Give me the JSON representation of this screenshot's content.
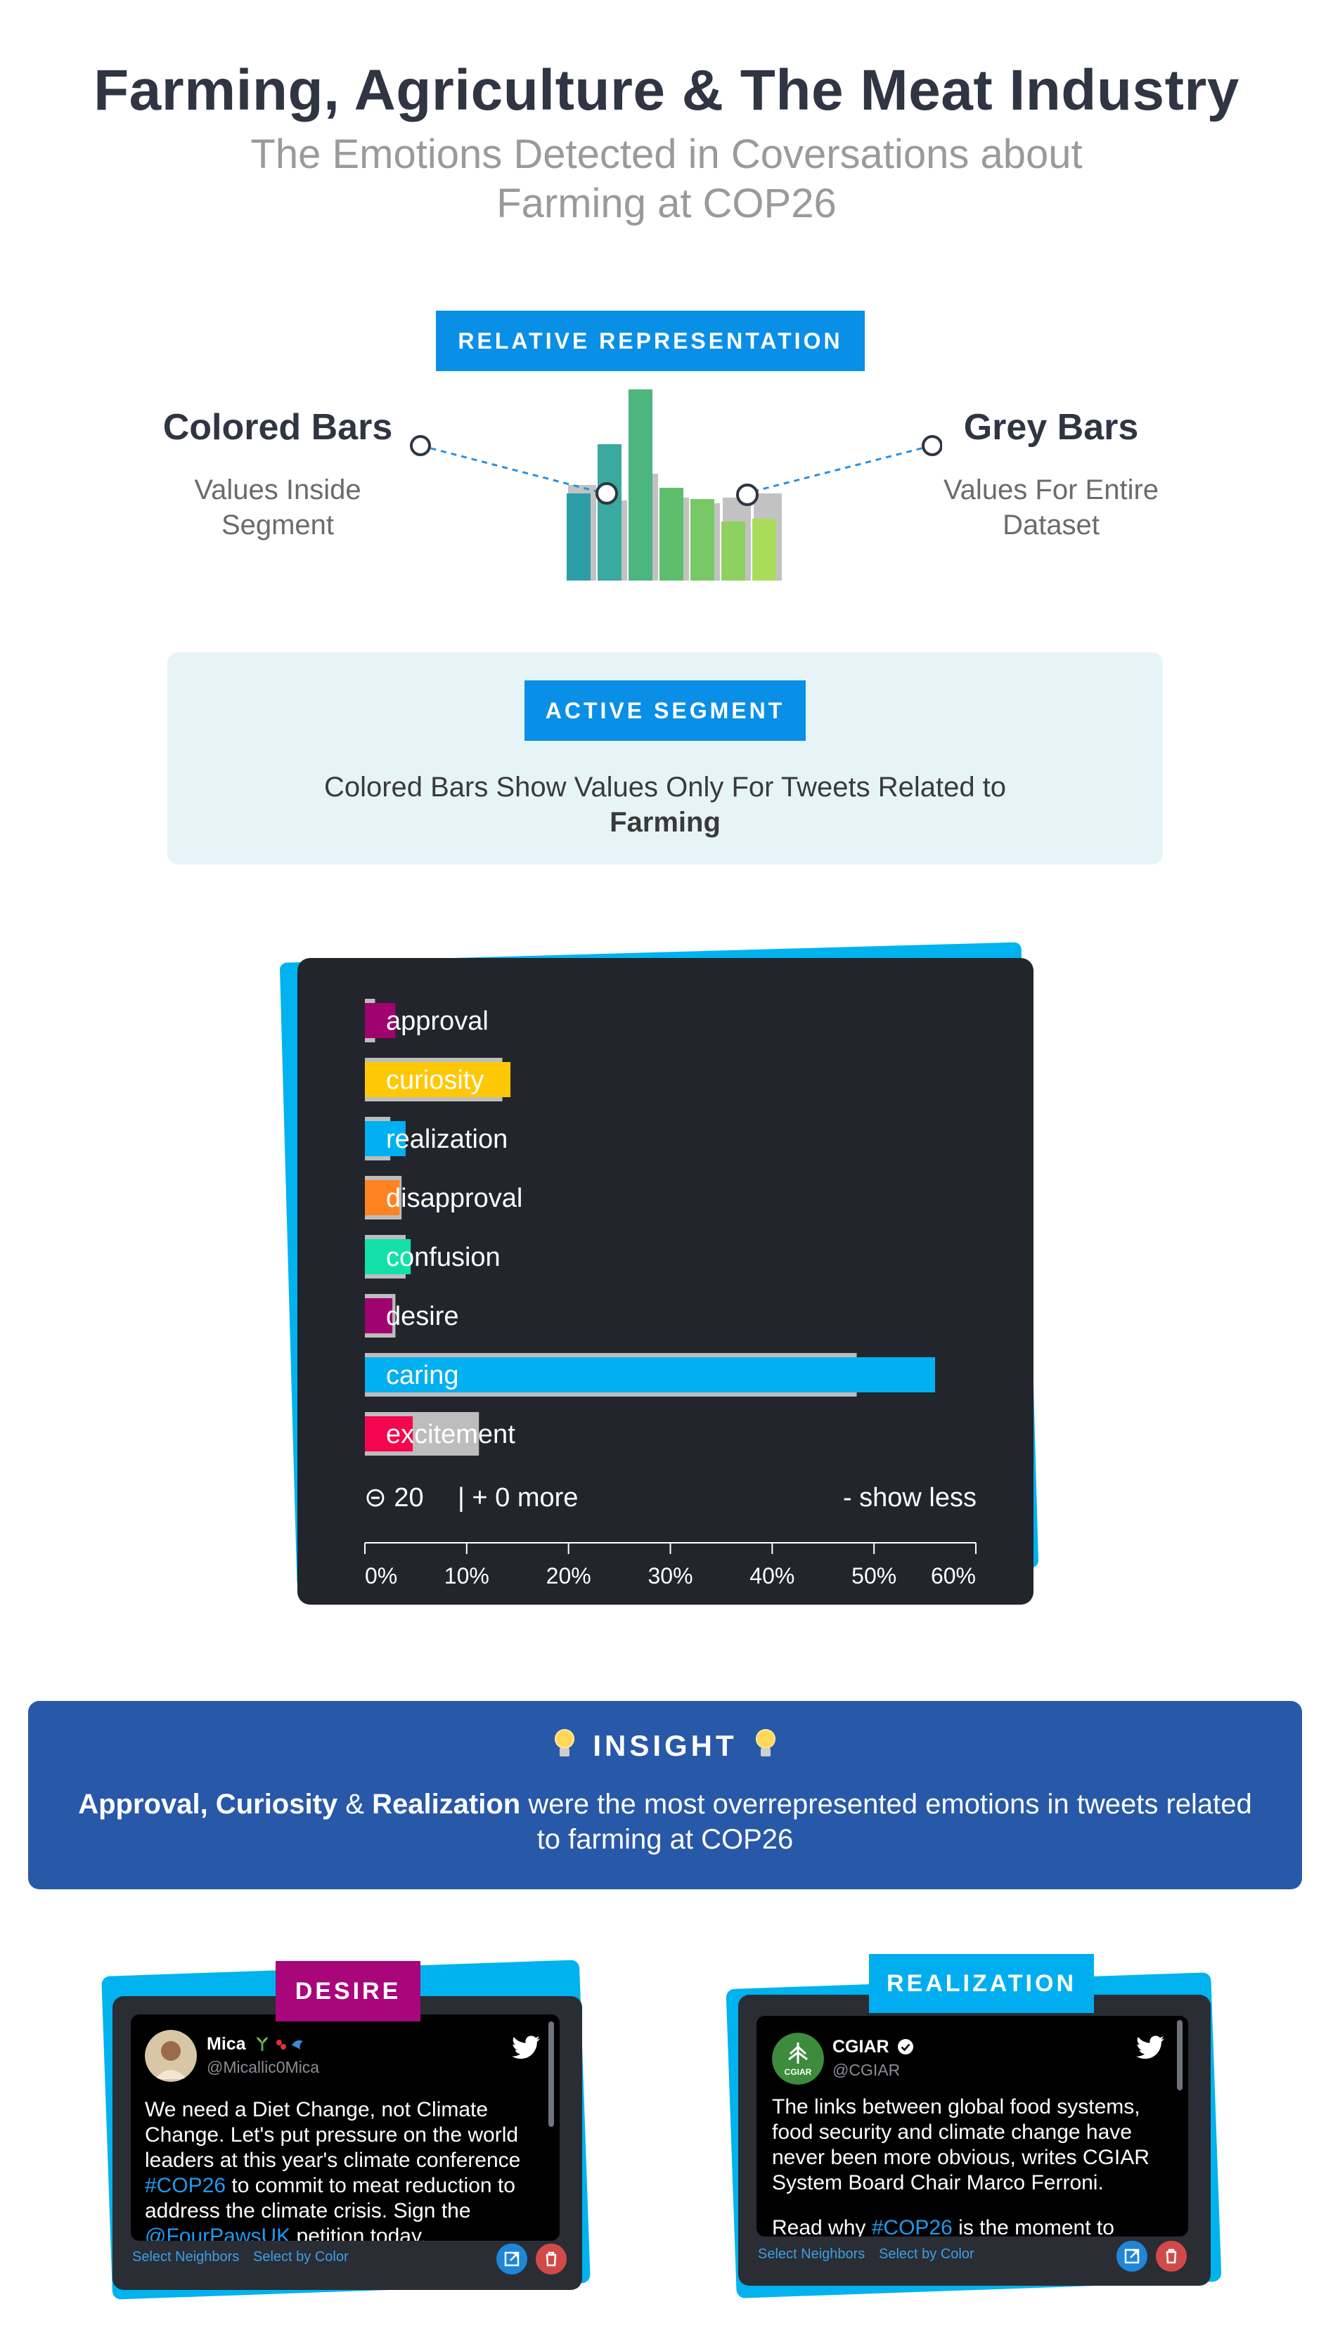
{
  "header": {
    "title": "Farming, Agriculture & The Meat Industry",
    "subtitle_line1": "The Emotions Detected in Coversations about",
    "subtitle_line2": "Farming at COP26"
  },
  "legend": {
    "badge": "RELATIVE REPRESENTATION",
    "left_title": "Colored Bars",
    "left_line1": "Values Inside",
    "left_line2": "Segment",
    "right_title": "Grey Bars",
    "right_line1": "Values For Entire",
    "right_line2": "Dataset"
  },
  "segment": {
    "badge": "ACTIVE SEGMENT",
    "text": "Colored Bars Show Values Only For Tweets Related to",
    "bold": "Farming"
  },
  "chart_data": {
    "type": "bar",
    "orientation": "horizontal",
    "categories": [
      "approval",
      "curiosity",
      "realization",
      "disapproval",
      "confusion",
      "desire",
      "caring",
      "excitement"
    ],
    "series": [
      {
        "values": [
          3.0,
          14.3,
          4.0,
          3.4,
          4.5,
          2.7,
          56.0,
          4.7
        ]
      },
      {
        "values": [
          1.0,
          13.5,
          2.5,
          3.6,
          4.0,
          3.0,
          48.3,
          11.2
        ]
      }
    ],
    "colors": [
      "#a0036f",
      "#ffc807",
      "#00b0f0",
      "#ff8322",
      "#13e0a8",
      "#a0036f",
      "#00b0f0",
      "#f4074f"
    ],
    "xlim": [
      0,
      60
    ],
    "xticks": [
      "0%",
      "10%",
      "20%",
      "30%",
      "40%",
      "50%",
      "60%"
    ],
    "footer_count": "⊝ 20",
    "footer_more": "| + 0 more",
    "footer_less": "- show less"
  },
  "insight": {
    "title": "INSIGHT",
    "bold1": "Approval, Curiosity",
    "amp": " & ",
    "bold2": "Realization",
    "rest": " were the most overrepresented emotions in tweets related to farming at COP26"
  },
  "tweets": [
    {
      "tag": "DESIRE",
      "tag_color": "#a8067a",
      "name": "Mica",
      "handle": "@Micallic0Mica",
      "body_pre": "We need a Diet Change, not Climate Change. Let's put pressure on the world leaders at this year's climate conference ",
      "hashtag": "#COP26",
      "body_post": " to commit to meat reduction to address the climate crisis. Sign the ",
      "mention": "@FourPawsUK",
      "body_end": " petition today.",
      "select_neighbors": "Select Neighbors",
      "select_color": "Select by Color"
    },
    {
      "tag": "REALIZATION",
      "tag_color": "#00aef0",
      "name": "CGIAR",
      "avatar_text": "CGIAR",
      "handle": "@CGIAR",
      "body_pre": "The links between global food systems, food security and climate change have never been more obvious, writes CGIAR System Board Chair Marco Ferroni.",
      "body_post2_pre": "Read why ",
      "hashtag": "#COP26",
      "body_post2_end": " is the moment to",
      "select_neighbors": "Select Neighbors",
      "select_color": "Select by Color"
    }
  ]
}
